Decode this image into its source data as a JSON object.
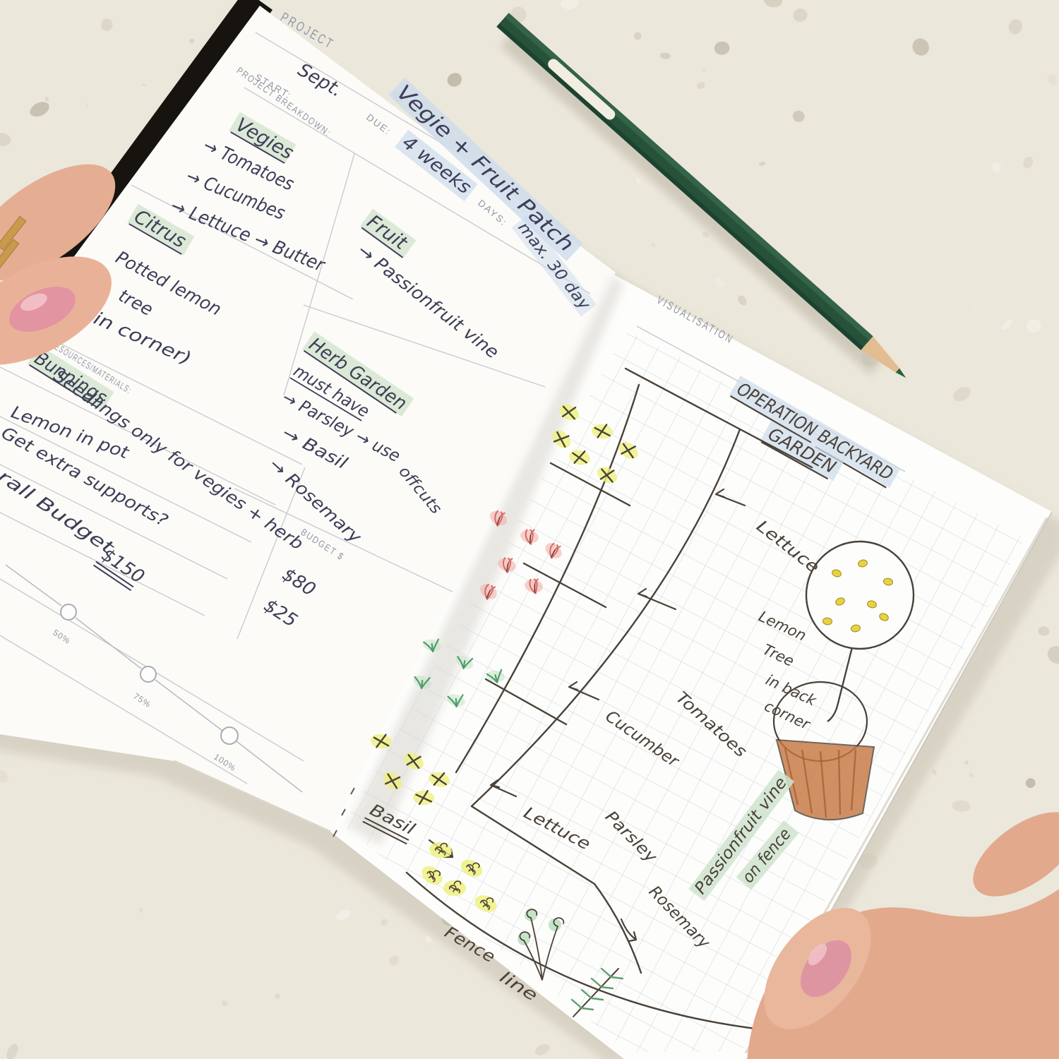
{
  "left_page": {
    "header": "PROJECT",
    "start_label": "START:",
    "start_value": "Sept.",
    "breakdown_label": "PROJECT BREAKDOWN:",
    "due_label": "DUE:",
    "due_value": "4 weeks",
    "days_label": "DAYS:",
    "days_value": "max. 30 day",
    "title": "Vegie + Fruit Patch",
    "vegies_title": "Vegies",
    "vegies_item1": "→ Tomatoes",
    "vegies_item2": "→ Cucumbes",
    "vegies_item3": "→ Lettuce → Butter",
    "citrus_title": "Citrus",
    "citrus_line1": "Potted lemon",
    "citrus_line2": "tree",
    "citrus_line3": "(in corner)",
    "fruit_title": "Fruit",
    "fruit_item": "→ Passionfruit vine",
    "herb_title": "Herb Garden",
    "herb_note": "must have",
    "herb_item1": "→ Parsley → use",
    "herb_item1_wrap": "offcuts",
    "herb_item2": "→ Basil",
    "herb_item3": "→ Rosemary",
    "resources_label": "RESOURCES/MATERIALS:",
    "resources_store": "Bunnings",
    "resources_note1": "Seedlings only for vegies + herb",
    "resources_note2": "Lemon in pot",
    "resources_note3": "Get extra supports?",
    "total_label": "Overall Budget",
    "total_value": "$150",
    "budget_label": "BUDGET $",
    "budget_value1": "$80",
    "budget_value2": "$25",
    "progress_50": "50%",
    "progress_75": "75%",
    "progress_100": "100%"
  },
  "right_page": {
    "header": "VISUALISATION",
    "title_line1": "OPERATION BACKYARD",
    "title_line2": "GARDEN",
    "label_lettuce_top": "Lettuce",
    "label_tomatoes": "Tomatoes",
    "label_cucumber": "Cucumber",
    "label_lettuce_bottom": "Lettuce",
    "label_parsley": "Parsley",
    "label_rosemary": "Rosemary",
    "label_basil": "Basil",
    "lemon_label_line1": "Lemon",
    "lemon_label_line2": "Tree",
    "lemon_label_line3": "in back",
    "lemon_label_line4": "corner",
    "passionfruit_line1": "Passionfruit vine",
    "passionfruit_line2": "on fence",
    "fence_word1": "Fence",
    "fence_word2": "line"
  },
  "colors": {
    "highlight_blue": "#cddcec",
    "highlight_green": "#d5e5d0",
    "highlight_yellow": "#eef07e",
    "ink": "#3d3e58",
    "pen": "#4a4238",
    "template_gray": "#9097a5",
    "paper": "#fcfbf8",
    "terrazzo": "#eae6da",
    "pencil_green": "#27523a",
    "pencil_yellow": "#cdd25f"
  }
}
